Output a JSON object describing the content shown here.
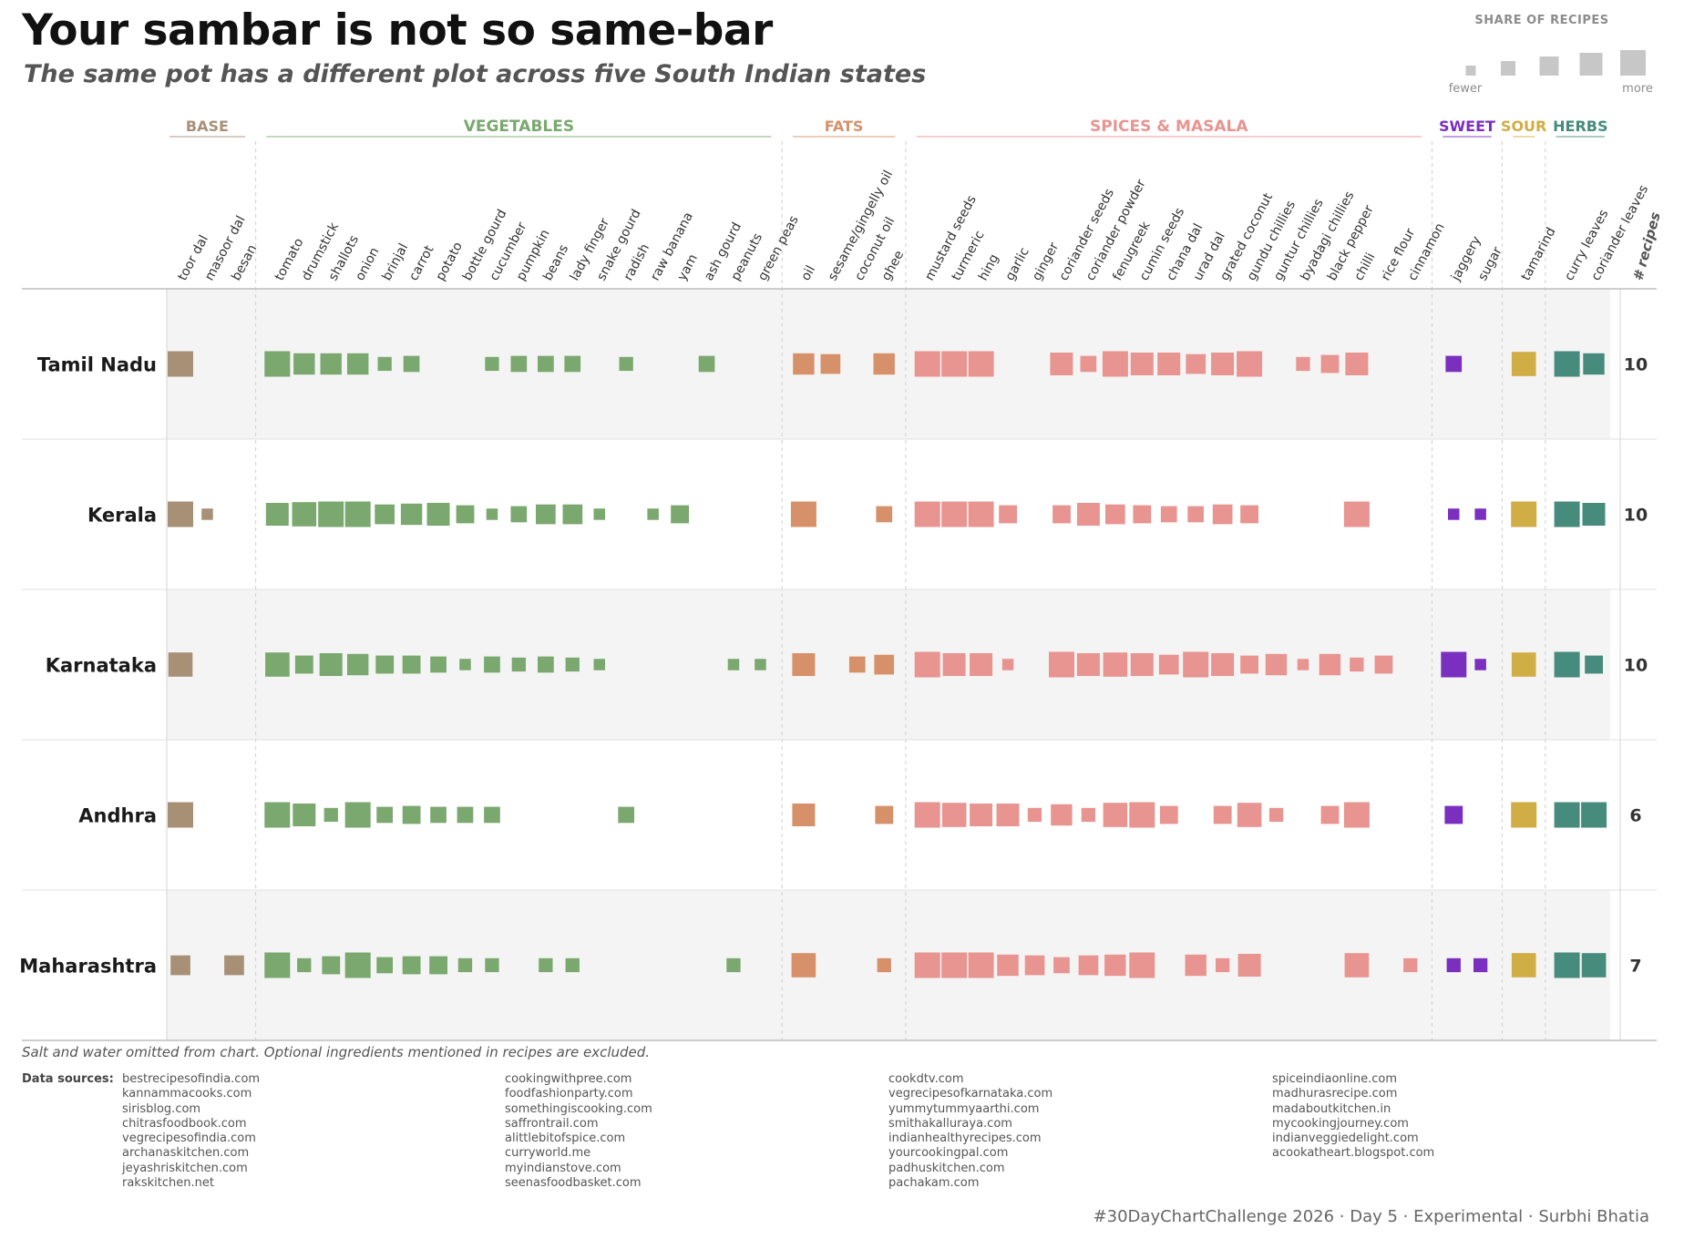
{
  "title": "Your sambar is not so same-bar",
  "subtitle": "The same pot has a different plot across five South Indian states",
  "legend": {
    "title": "SHARE OF RECIPES",
    "low_label": "fewer",
    "high_label": "more"
  },
  "count_header": "# recipes",
  "footnote": "Salt and water omitted from chart. Optional ingredients mentioned in recipes are excluded.",
  "sources_label": "Data sources:",
  "sources": [
    [
      "bestrecipesofindia.com",
      "kannammacooks.com",
      "sirisblog.com",
      "chitrasfoodbook.com",
      "vegrecipesofindia.com",
      "archanaskitchen.com",
      "jeyashriskitchen.com",
      "rakskitchen.net"
    ],
    [
      "cookingwithpree.com",
      "foodfashionparty.com",
      "somethingiscooking.com",
      "saffrontrail.com",
      "alittlebitofspice.com",
      "curryworld.me",
      "myindianstove.com",
      "seenasfoodbasket.com"
    ],
    [
      "cookdtv.com",
      "vegrecipesofkarnataka.com",
      "yummytummyaarthi.com",
      "smithakalluraya.com",
      "indianhealthyrecipes.com",
      "yourcookingpal.com",
      "padhuskitchen.com",
      "pachakam.com"
    ],
    [
      "spiceindiaonline.com",
      "madhurasrecipe.com",
      "madaboutkitchen.in",
      "mycookingjourney.com",
      "indianveggiedelight.com",
      "acookatheart.blogspot.com"
    ]
  ],
  "credit": "#30DayChartChallenge 2026 · Day 5 · Experimental · Surbhi Bhatia",
  "chart_data": {
    "type": "heatmap",
    "encoding": "square size = share of recipes containing the ingredient",
    "rows": [
      "Tamil Nadu",
      "Kerala",
      "Karnataka",
      "Andhra",
      "Maharashtra"
    ],
    "recipe_counts": [
      10,
      10,
      10,
      6,
      7
    ],
    "groups": [
      {
        "name": "BASE",
        "color": "#a89077",
        "ingredients": [
          "toor dal",
          "masoor dal",
          "besan"
        ]
      },
      {
        "name": "VEGETABLES",
        "color": "#7aa86f",
        "ingredients": [
          "tomato",
          "drumstick",
          "shallots",
          "onion",
          "brinjal",
          "carrot",
          "potato",
          "bottle gourd",
          "cucumber",
          "pumpkin",
          "beans",
          "lady finger",
          "snake gourd",
          "radish",
          "raw banana",
          "yam",
          "ash gourd",
          "peanuts",
          "green peas"
        ]
      },
      {
        "name": "FATS",
        "color": "#d6916a",
        "ingredients": [
          "oil",
          "sesame/gingelly oil",
          "coconut oil",
          "ghee"
        ]
      },
      {
        "name": "SPICES & MASALA",
        "color": "#e89491",
        "ingredients": [
          "mustard seeds",
          "turmeric",
          "hing",
          "garlic",
          "ginger",
          "coriander seeds",
          "coriander powder",
          "fenugreek",
          "cumin seeds",
          "chana dal",
          "urad dal",
          "grated coconut",
          "gundu chillies",
          "guntur chillies",
          "byadagi chillies",
          "black pepper",
          "chilli",
          "rice flour",
          "cinnamon"
        ]
      },
      {
        "name": "SWEET",
        "color": "#7b2fbf",
        "ingredients": [
          "jaggery",
          "sugar"
        ]
      },
      {
        "name": "SOUR",
        "color": "#d1ad45",
        "ingredients": [
          "tamarind"
        ]
      },
      {
        "name": "HERBS",
        "color": "#468b7c",
        "ingredients": [
          "curry leaves",
          "coriander leaves"
        ]
      }
    ],
    "share": {
      "Tamil Nadu": [
        1.0,
        0,
        0,
        1.0,
        0.7,
        0.7,
        0.7,
        0.3,
        0.4,
        0,
        0,
        0.3,
        0.4,
        0.4,
        0.4,
        0,
        0.3,
        0,
        0,
        0.4,
        0,
        0,
        0.7,
        0.6,
        0,
        0.7,
        1.0,
        1.0,
        1.0,
        0,
        0,
        0.8,
        0.4,
        1.0,
        0.8,
        0.8,
        0.6,
        0.8,
        1.0,
        0,
        0.3,
        0.5,
        0.8,
        0,
        0,
        0.4,
        0,
        0.9,
        1.0,
        0.7
      ],
      "Kerala": [
        1.0,
        0.2,
        0,
        0.8,
        0.9,
        1.0,
        1.0,
        0.6,
        0.7,
        0.8,
        0.5,
        0.2,
        0.4,
        0.6,
        0.6,
        0.2,
        0,
        0.2,
        0.5,
        0,
        0,
        0,
        1.0,
        0,
        0,
        0.4,
        1.0,
        1.0,
        1.0,
        0.5,
        0,
        0.5,
        0.8,
        0.6,
        0.5,
        0.4,
        0.4,
        0.6,
        0.5,
        0,
        0,
        0,
        1.0,
        0,
        0,
        0.2,
        0.2,
        1.0,
        1.0,
        0.8
      ],
      "Karnataka": [
        0.9,
        0,
        0,
        0.9,
        0.5,
        0.8,
        0.7,
        0.5,
        0.5,
        0.4,
        0.2,
        0.4,
        0.3,
        0.4,
        0.3,
        0.2,
        0,
        0,
        0,
        0,
        0.2,
        0.2,
        0.8,
        0,
        0.4,
        0.6,
        1.0,
        0.8,
        0.8,
        0.2,
        0,
        1.0,
        0.8,
        0.9,
        0.8,
        0.6,
        1.0,
        0.8,
        0.5,
        0.7,
        0.2,
        0.7,
        0.3,
        0.5,
        0,
        1.0,
        0.2,
        0.9,
        1.0,
        0.5
      ],
      "Andhra": [
        1.0,
        0,
        0,
        1.0,
        0.8,
        0.3,
        1.0,
        0.4,
        0.5,
        0.4,
        0.4,
        0.4,
        0,
        0,
        0,
        0,
        0.4,
        0,
        0,
        0,
        0,
        0,
        0.8,
        0,
        0,
        0.5,
        1.0,
        0.9,
        0.8,
        0.8,
        0.3,
        0.7,
        0.3,
        0.9,
        1.0,
        0.5,
        0,
        0.5,
        0.9,
        0.3,
        0,
        0.5,
        1.0,
        0,
        0,
        0.5,
        0,
        1.0,
        1.0,
        1.0
      ],
      "Maharashtra": [
        0.6,
        0,
        0.6,
        1.0,
        0.3,
        0.5,
        1.0,
        0.4,
        0.5,
        0.5,
        0.3,
        0.3,
        0,
        0.3,
        0.3,
        0,
        0,
        0,
        0,
        0,
        0.3,
        0,
        0.9,
        0,
        0,
        0.3,
        1.0,
        1.0,
        1.0,
        0.7,
        0.6,
        0.4,
        0.6,
        0.7,
        1.0,
        0,
        0.7,
        0.3,
        0.8,
        0,
        0,
        0,
        0.9,
        0,
        0.3,
        0.3,
        0.3,
        0.9,
        1.0,
        0.9
      ]
    }
  }
}
